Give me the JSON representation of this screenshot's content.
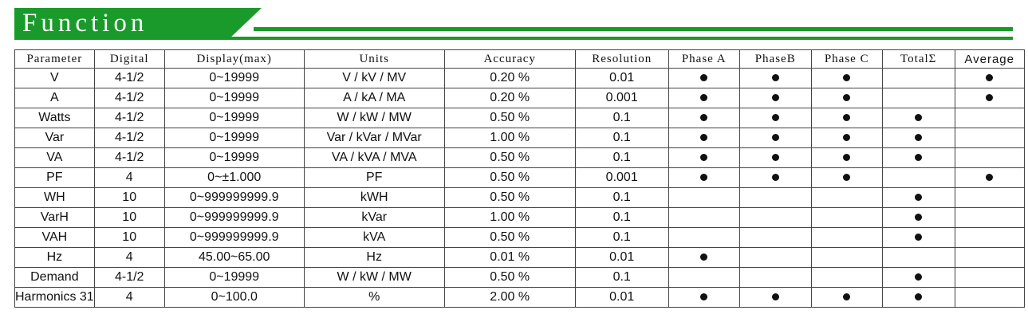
{
  "header": {
    "title": "Function"
  },
  "table": {
    "columns": [
      "Parameter",
      "Digital",
      "Display(max)",
      "Units",
      "Accuracy",
      "Resolution",
      "Phase A",
      "PhaseB",
      "Phase C",
      "TotalΣ",
      "Average"
    ],
    "rows": [
      {
        "parameter": "V",
        "digital": "4-1/2",
        "display": "0~19999",
        "units": "V / kV / MV",
        "accuracy": "0.20 %",
        "resolution": "0.01",
        "phase_a": true,
        "phase_b": true,
        "phase_c": true,
        "total": false,
        "average": true
      },
      {
        "parameter": "A",
        "digital": "4-1/2",
        "display": "0~19999",
        "units": "A / kA / MA",
        "accuracy": "0.20 %",
        "resolution": "0.001",
        "phase_a": true,
        "phase_b": true,
        "phase_c": true,
        "total": false,
        "average": true
      },
      {
        "parameter": "Watts",
        "digital": "4-1/2",
        "display": "0~19999",
        "units": "W / kW / MW",
        "accuracy": "0.50 %",
        "resolution": "0.1",
        "phase_a": true,
        "phase_b": true,
        "phase_c": true,
        "total": true,
        "average": false
      },
      {
        "parameter": "Var",
        "digital": "4-1/2",
        "display": "0~19999",
        "units": "Var / kVar / MVar",
        "accuracy": "1.00 %",
        "resolution": "0.1",
        "phase_a": true,
        "phase_b": true,
        "phase_c": true,
        "total": true,
        "average": false
      },
      {
        "parameter": "VA",
        "digital": "4-1/2",
        "display": "0~19999",
        "units": "VA / kVA / MVA",
        "accuracy": "0.50 %",
        "resolution": "0.1",
        "phase_a": true,
        "phase_b": true,
        "phase_c": true,
        "total": true,
        "average": false
      },
      {
        "parameter": "PF",
        "digital": "4",
        "display": "0~±1.000",
        "units": "PF",
        "accuracy": "0.50 %",
        "resolution": "0.001",
        "phase_a": true,
        "phase_b": true,
        "phase_c": true,
        "total": false,
        "average": true
      },
      {
        "parameter": "WH",
        "digital": "10",
        "display": "0~999999999.9",
        "units": "kWH",
        "accuracy": "0.50 %",
        "resolution": "0.1",
        "phase_a": false,
        "phase_b": false,
        "phase_c": false,
        "total": true,
        "average": false
      },
      {
        "parameter": "VarH",
        "digital": "10",
        "display": "0~999999999.9",
        "units": "kVar",
        "accuracy": "1.00 %",
        "resolution": "0.1",
        "phase_a": false,
        "phase_b": false,
        "phase_c": false,
        "total": true,
        "average": false
      },
      {
        "parameter": "VAH",
        "digital": "10",
        "display": "0~999999999.9",
        "units": "kVA",
        "accuracy": "0.50 %",
        "resolution": "0.1",
        "phase_a": false,
        "phase_b": false,
        "phase_c": false,
        "total": true,
        "average": false
      },
      {
        "parameter": "Hz",
        "digital": "4",
        "display": "45.00~65.00",
        "units": "Hz",
        "accuracy": "0.01 %",
        "resolution": "0.01",
        "phase_a": true,
        "phase_b": false,
        "phase_c": false,
        "total": false,
        "average": false
      },
      {
        "parameter": "Demand",
        "digital": "4-1/2",
        "display": "0~19999",
        "units": "W / kW / MW",
        "accuracy": "0.50 %",
        "resolution": "0.1",
        "phase_a": false,
        "phase_b": false,
        "phase_c": false,
        "total": true,
        "average": false
      },
      {
        "parameter": "Harmonics 31",
        "digital": "4",
        "display": "0~100.0",
        "units": "%",
        "accuracy": "2.00 %",
        "resolution": "0.01",
        "phase_a": true,
        "phase_b": true,
        "phase_c": true,
        "total": true,
        "average": false
      }
    ]
  }
}
